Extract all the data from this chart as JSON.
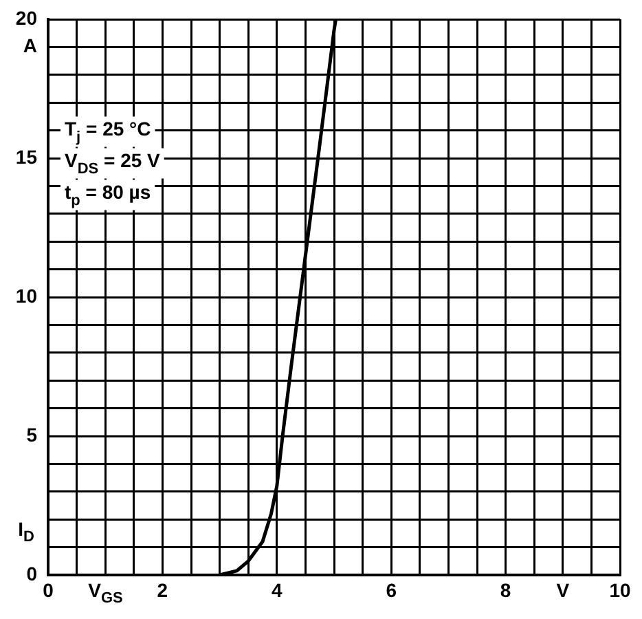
{
  "chart_data": {
    "type": "line",
    "xlabel": "V$_{GS}$",
    "ylabel": "I$_{D}$",
    "annotations": [
      "T$_{j}$ = 25 °C",
      "V$_{DS}$ = 25 V",
      "t$_{p}$ = 80 µs"
    ],
    "x": [
      3.0,
      3.3,
      3.5,
      3.75,
      3.9,
      4.0,
      4.1,
      4.25,
      4.5,
      4.75,
      5.0,
      5.03
    ],
    "series": [
      {
        "color": "#000000",
        "values": [
          0,
          0.15,
          0.5,
          1.2,
          2.2,
          3.2,
          5,
          7.5,
          11.5,
          15.5,
          19.6,
          20
        ]
      }
    ],
    "xlim": [
      0,
      10
    ],
    "xticks": [
      0,
      {
        "value": 0.5,
        "label": null
      },
      {
        "value": 1,
        "label": null
      },
      {
        "value": 1.5,
        "label": null
      },
      2,
      {
        "value": 2.5,
        "label": null
      },
      {
        "value": 3,
        "label": null
      },
      {
        "value": 3.5,
        "label": null
      },
      4,
      {
        "value": 4.5,
        "label": null
      },
      {
        "value": 5,
        "label": null
      },
      {
        "value": 5.5,
        "label": null
      },
      6,
      {
        "value": 6.5,
        "label": null
      },
      {
        "value": 7,
        "label": null
      },
      {
        "value": 7.5,
        "label": null
      },
      8,
      {
        "value": 8.5,
        "label": null
      },
      {
        "value": 9,
        "label": "V"
      },
      {
        "value": 9.5,
        "label": null
      },
      10
    ],
    "ylim": [
      0,
      20
    ],
    "yticks": [
      0,
      {
        "value": 1,
        "label": null
      },
      {
        "value": 2,
        "label": null
      },
      {
        "value": 3,
        "label": null
      },
      {
        "value": 4,
        "label": null
      },
      5,
      {
        "value": 6,
        "label": null
      },
      {
        "value": 7,
        "label": null
      },
      {
        "value": 8,
        "label": null
      },
      {
        "value": 9,
        "label": null
      },
      10,
      {
        "value": 11,
        "label": null
      },
      {
        "value": 12,
        "label": null
      },
      {
        "value": 13,
        "label": null
      },
      {
        "value": 14,
        "label": null
      },
      15,
      {
        "value": 16,
        "label": null
      },
      {
        "value": 17,
        "label": null
      },
      {
        "value": 18,
        "label": null
      },
      {
        "value": 19,
        "label": "A"
      },
      20
    ],
    "grid": true,
    "legend": false,
    "marker": "none",
    "line_style": "solid"
  }
}
